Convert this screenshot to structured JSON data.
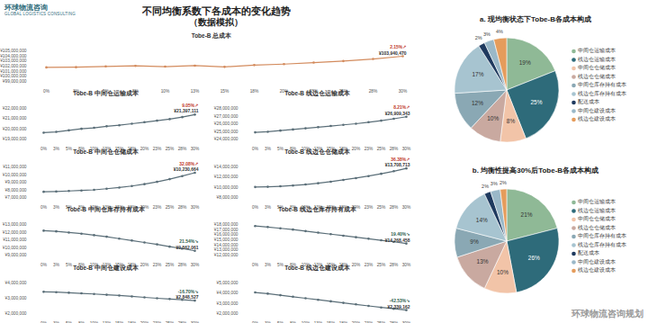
{
  "title": "不同均衡系数下各成本的变化趋势",
  "subtitle": "（数据模拟）",
  "logo": "环球物流咨询",
  "logo_subtitle": "GLOBAL LOGISTICS CONSULTING",
  "watermark": "环球物流咨询规划",
  "chart_data": [
    {
      "type": "line",
      "title": "Tobe-B 总成本",
      "color": "#d38b5d",
      "marker": "circle",
      "categories": [
        "0%",
        "3%",
        "5%",
        "8%",
        "10%",
        "13%",
        "15%",
        "18%",
        "20%",
        "23%",
        "25%",
        "28%",
        "30%"
      ],
      "values": [
        101754000,
        101800000,
        101950000,
        102050000,
        101900000,
        102100000,
        101850000,
        102200000,
        102400000,
        102700000,
        103000000,
        103400000,
        103940470
      ],
      "ylim": [
        99000000,
        105000000
      ],
      "yticks": [
        {
          "value": 99000000,
          "label": "¥99,000,000"
        },
        {
          "value": 100000000,
          "label": "¥100,000,000"
        },
        {
          "value": 101000000,
          "label": "¥101,000,000"
        },
        {
          "value": 102000000,
          "label": "¥102,000,000"
        },
        {
          "value": 103000000,
          "label": "¥103,000,000"
        },
        {
          "value": 104000000,
          "label": "¥104,000,000"
        },
        {
          "value": 105000000,
          "label": "¥105,000,000"
        }
      ],
      "annotations": [
        {
          "text": "2.15%↗",
          "color": "#c0392b"
        },
        {
          "text": "¥103,940,470"
        }
      ]
    },
    {
      "type": "line",
      "title": "Tobe-B 中间仓运输成本",
      "color": "#5a6e78",
      "marker": "circle",
      "categories": [
        "0%",
        "3%",
        "5%",
        "8%",
        "10%",
        "13%",
        "15%",
        "18%",
        "20%",
        "23%",
        "25%",
        "28%",
        "30%"
      ],
      "values": [
        19621000,
        19700000,
        19850000,
        20000000,
        20100000,
        20250000,
        20350000,
        20500000,
        20650000,
        20800000,
        20950000,
        21150000,
        21397111
      ],
      "ylim": [
        19000000,
        22000000
      ],
      "yticks": [
        {
          "value": 19000000,
          "label": "¥19,000,000"
        },
        {
          "value": 20000000,
          "label": "¥20,000,000"
        },
        {
          "value": 21000000,
          "label": "¥21,000,000"
        },
        {
          "value": 22000000,
          "label": "¥22,000,000"
        }
      ],
      "annotations": [
        {
          "text": "9.05%↗",
          "color": "#c0392b"
        },
        {
          "text": "¥21,397,111"
        }
      ]
    },
    {
      "type": "line",
      "title": "Tobe-B 线边仓运输成本",
      "color": "#5a6e78",
      "marker": "circle",
      "categories": [
        "0%",
        "3%",
        "5%",
        "8%",
        "10%",
        "13%",
        "15%",
        "18%",
        "20%",
        "23%",
        "25%",
        "28%",
        "30%"
      ],
      "values": [
        24868000,
        24950000,
        25100000,
        25250000,
        25400000,
        25550000,
        25700000,
        25850000,
        26000000,
        26200000,
        26400000,
        26650000,
        26909343
      ],
      "ylim": [
        24000000,
        28000000
      ],
      "yticks": [
        {
          "value": 24000000,
          "label": "¥24,000,000"
        },
        {
          "value": 25000000,
          "label": "¥25,000,000"
        },
        {
          "value": 26000000,
          "label": "¥26,000,000"
        },
        {
          "value": 27000000,
          "label": "¥27,000,000"
        },
        {
          "value": 28000000,
          "label": "¥28,000,000"
        }
      ],
      "annotations": [
        {
          "text": "8.21%↗",
          "color": "#c0392b"
        },
        {
          "text": "¥26,909,343"
        }
      ]
    },
    {
      "type": "line",
      "title": "Tobe-B 中间仓仓储成本",
      "color": "#5a6e78",
      "marker": "circle",
      "categories": [
        "0%",
        "3%",
        "5%",
        "8%",
        "10%",
        "13%",
        "15%",
        "18%",
        "20%",
        "23%",
        "25%",
        "28%",
        "30%"
      ],
      "values": [
        7746000,
        7780000,
        7850000,
        7920000,
        8000000,
        8150000,
        8300000,
        8500000,
        8750000,
        9050000,
        9400000,
        9800000,
        10230664
      ],
      "ylim": [
        7000000,
        11000000
      ],
      "yticks": [
        {
          "value": 7000000,
          "label": "¥7,000,000"
        },
        {
          "value": 8000000,
          "label": "¥8,000,000"
        },
        {
          "value": 9000000,
          "label": "¥9,000,000"
        },
        {
          "value": 10000000,
          "label": "¥10,000,000"
        },
        {
          "value": 11000000,
          "label": "¥11,000,000"
        }
      ],
      "annotations": [
        {
          "text": "32.08%↗",
          "color": "#c0392b"
        },
        {
          "text": "¥10,230,664"
        }
      ]
    },
    {
      "type": "line",
      "title": "Tobe-B 线边仓仓储成本",
      "color": "#5a6e78",
      "marker": "circle",
      "categories": [
        "0%",
        "3%",
        "5%",
        "8%",
        "10%",
        "13%",
        "15%",
        "18%",
        "20%",
        "23%",
        "25%",
        "28%",
        "30%"
      ],
      "values": [
        10052000,
        10100000,
        10200000,
        10350000,
        10550000,
        10800000,
        11100000,
        11450000,
        11800000,
        12200000,
        12650000,
        13150000,
        13708713
      ],
      "ylim": [
        8000000,
        14000000
      ],
      "yticks": [
        {
          "value": 8000000,
          "label": "¥8,000,000"
        },
        {
          "value": 10000000,
          "label": "¥10,000,000"
        },
        {
          "value": 12000000,
          "label": "¥12,000,000"
        },
        {
          "value": 14000000,
          "label": "¥14,000,000"
        }
      ],
      "annotations": [
        {
          "text": "36.38%↗",
          "color": "#c0392b"
        },
        {
          "text": "¥13,708,713"
        }
      ]
    },
    {
      "type": "line",
      "title": "Tobe-B 中间仓库存持有成本",
      "color": "#5a6e78",
      "marker": "circle",
      "categories": [
        "0%",
        "3%",
        "5%",
        "8%",
        "10%",
        "13%",
        "15%",
        "18%",
        "20%",
        "23%",
        "25%",
        "28%",
        "30%"
      ],
      "values": [
        12187000,
        12100000,
        11950000,
        11800000,
        11600000,
        11400000,
        11150000,
        10900000,
        10650000,
        10400000,
        10100000,
        9850000,
        9562061
      ],
      "ylim": [
        9000000,
        13000000
      ],
      "yticks": [
        {
          "value": 9000000,
          "label": "¥9,000,000"
        },
        {
          "value": 10000000,
          "label": "¥10,000,000"
        },
        {
          "value": 11000000,
          "label": "¥11,000,000"
        },
        {
          "value": 12000000,
          "label": "¥12,000,000"
        },
        {
          "value": 13000000,
          "label": "¥13,000,000"
        }
      ],
      "annotations": [
        {
          "text": "21.54%↘",
          "color": "#2e5e4e"
        },
        {
          "text": "¥9,562,061"
        }
      ]
    },
    {
      "type": "line",
      "title": "Tobe-B 线边仓库存持有成本",
      "color": "#5a6e78",
      "marker": "circle",
      "categories": [
        "0%",
        "3%",
        "5%",
        "8%",
        "10%",
        "13%",
        "15%",
        "18%",
        "20%",
        "23%",
        "25%",
        "28%",
        "30%"
      ],
      "values": [
        17703000,
        17500000,
        17250000,
        17000000,
        16700000,
        16400000,
        16100000,
        15800000,
        15500000,
        15200000,
        14900000,
        14600000,
        14268458
      ],
      "ylim": [
        12000000,
        18000000
      ],
      "yticks": [
        {
          "value": 12000000,
          "label": "¥12,000,000"
        },
        {
          "value": 13000000,
          "label": "¥13,000,000"
        },
        {
          "value": 14000000,
          "label": "¥14,000,000"
        },
        {
          "value": 15000000,
          "label": "¥15,000,000"
        },
        {
          "value": 16000000,
          "label": "¥16,000,000"
        },
        {
          "value": 17000000,
          "label": "¥17,000,000"
        },
        {
          "value": 18000000,
          "label": "¥18,000,000"
        }
      ],
      "annotations": [
        {
          "text": "19.40%↘",
          "color": "#2e5e4e"
        },
        {
          "text": "¥14,268,458"
        }
      ]
    },
    {
      "type": "line",
      "title": "Tobe-B 中间仓建设成本",
      "color": "#5a6e78",
      "marker": "circle",
      "categories": [
        "0%",
        "3%",
        "5%",
        "8%",
        "10%",
        "13%",
        "15%",
        "18%",
        "20%",
        "23%",
        "25%",
        "28%",
        "30%"
      ],
      "values": [
        3420000,
        3400000,
        3360000,
        3320000,
        3280000,
        3230000,
        3180000,
        3120000,
        3060000,
        3000000,
        2950000,
        2900000,
        2848527
      ],
      "ylim": [
        2000000,
        4000000
      ],
      "yticks": [
        {
          "value": 2000000,
          "label": "¥2,000,000"
        },
        {
          "value": 3000000,
          "label": "¥3,000,000"
        },
        {
          "value": 4000000,
          "label": "¥4,000,000"
        }
      ],
      "annotations": [
        {
          "text": "-16.70%↘",
          "color": "#2e5e4e"
        },
        {
          "text": "¥2,848,527"
        }
      ]
    },
    {
      "type": "line",
      "title": "Tobe-B 线边仓建设成本",
      "color": "#5a6e78",
      "marker": "circle",
      "categories": [
        "0%",
        "3%",
        "5%",
        "8%",
        "10%",
        "13%",
        "15%",
        "18%",
        "20%",
        "23%",
        "25%",
        "28%",
        "30%"
      ],
      "values": [
        4070000,
        3950000,
        3800000,
        3650000,
        3500000,
        3350000,
        3200000,
        3050000,
        2900000,
        2750000,
        2600000,
        2470000,
        2339162
      ],
      "ylim": [
        2000000,
        5000000
      ],
      "yticks": [
        {
          "value": 2000000,
          "label": "¥2,000,000"
        },
        {
          "value": 3000000,
          "label": "¥3,000,000"
        },
        {
          "value": 4000000,
          "label": "¥4,000,000"
        },
        {
          "value": 5000000,
          "label": "¥5,000,000"
        }
      ],
      "annotations": [
        {
          "text": "-42.53%↘",
          "color": "#2e5e4e"
        },
        {
          "text": "¥2,339,162"
        }
      ]
    },
    {
      "type": "pie",
      "title": "a. 现均衡状态下Tobe-B各成本构成",
      "legend": "right",
      "data_labels": true,
      "categories": [
        "中间仓运输成本",
        "线边仓运输成本",
        "中间仓仓储成本",
        "线边仓仓储成本",
        "中间仓库存持有成本",
        "线边仓库存持有成本",
        "配送成本",
        "中间仓建设成本",
        "线边仓建设成本"
      ],
      "values": [
        19,
        25,
        8,
        10,
        12,
        17,
        2,
        3,
        4
      ],
      "value_labels": [
        "19%",
        "25%",
        "8%",
        "10%",
        "12%",
        "17%",
        "2%",
        "3%",
        "4%"
      ],
      "colors": [
        "#8fb996",
        "#2e6b7a",
        "#f2c4a8",
        "#c9a9a0",
        "#8aa8b4",
        "#a7c4d0",
        "#1f3a5f",
        "#9ab8c8",
        "#e59c5c"
      ]
    },
    {
      "type": "pie",
      "title": "b. 均衡性提高30%后Tobe-B各成本构成",
      "legend": "right",
      "data_labels": true,
      "categories": [
        "中间仓运输成本",
        "线边仓运输成本",
        "中间仓仓储成本",
        "线边仓仓储成本",
        "中间仓库存持有成本",
        "线边仓库存持有成本",
        "配送成本",
        "中间仓建设成本",
        "线边仓建设成本"
      ],
      "values": [
        21,
        26,
        10,
        13,
        9,
        14,
        2,
        3,
        2
      ],
      "value_labels": [
        "21%",
        "26%",
        "10%",
        "13%",
        "9%",
        "14%",
        "2%",
        "3%",
        "2%"
      ],
      "colors": [
        "#8fb996",
        "#2e6b7a",
        "#f2c4a8",
        "#c9a9a0",
        "#8aa8b4",
        "#a7c4d0",
        "#1f3a5f",
        "#9ab8c8",
        "#e59c5c"
      ]
    }
  ]
}
